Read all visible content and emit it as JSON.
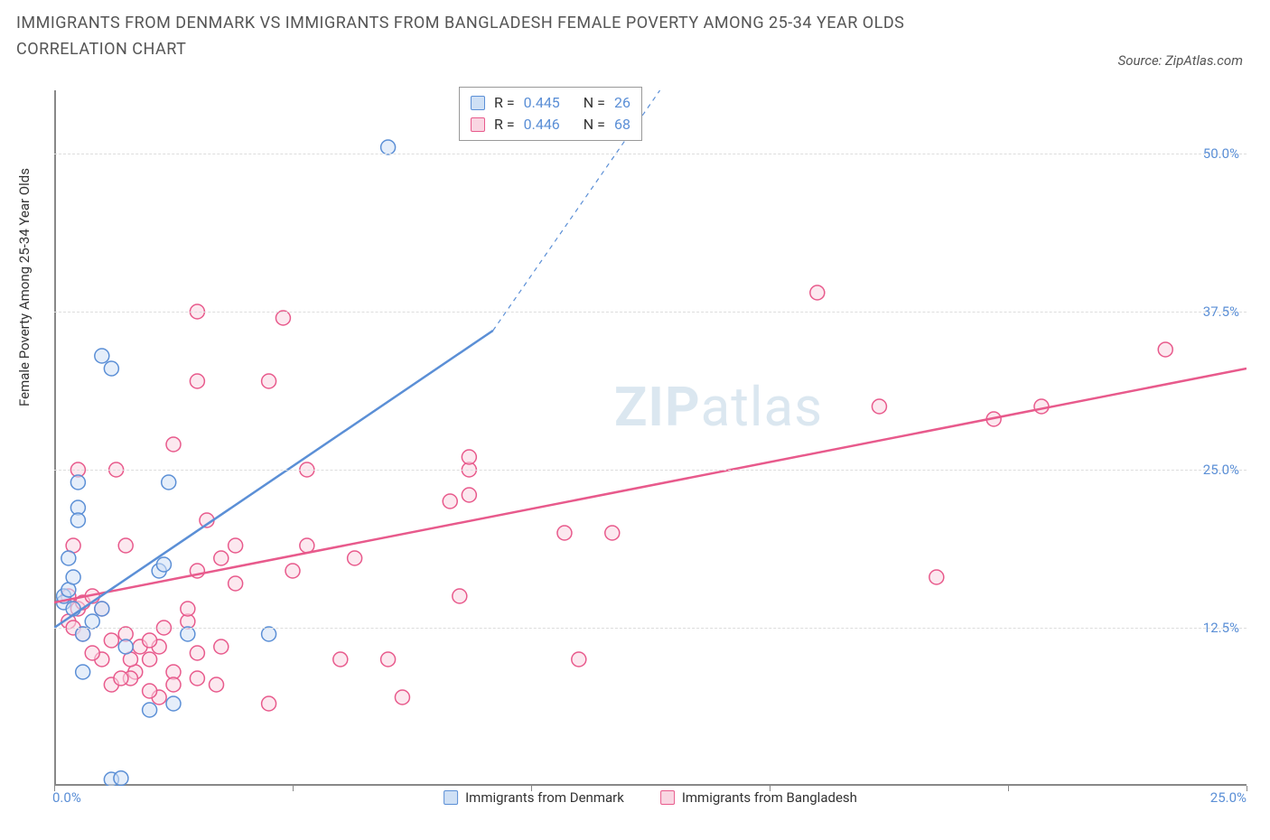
{
  "title": "IMMIGRANTS FROM DENMARK VS IMMIGRANTS FROM BANGLADESH FEMALE POVERTY AMONG 25-34 YEAR OLDS CORRELATION CHART",
  "source": "Source: ZipAtlas.com",
  "y_axis_label": "Female Poverty Among 25-34 Year Olds",
  "watermark_zip": "ZIP",
  "watermark_atlas": "atlas",
  "chart": {
    "type": "scatter",
    "xlim": [
      0,
      25
    ],
    "ylim": [
      0,
      55
    ],
    "x_ticks": [
      0,
      5,
      10,
      15,
      20,
      25
    ],
    "x_tick_labels": [
      "0.0%",
      "",
      "",
      "",
      "",
      "25.0%"
    ],
    "y_ticks": [
      12.5,
      25,
      37.5,
      50
    ],
    "y_tick_labels": [
      "12.5%",
      "25.0%",
      "37.5%",
      "50.0%"
    ],
    "background_color": "#ffffff",
    "grid_color": "#dddddd",
    "axis_color": "#888888",
    "marker_radius": 8,
    "marker_stroke_width": 1.5,
    "trend_line_width": 2.5,
    "series": [
      {
        "name": "Immigrants from Denmark",
        "fill_color": "#cfe0f5",
        "stroke_color": "#5b8fd6",
        "fill_opacity": 0.55,
        "R": "0.445",
        "N": "26",
        "trend": {
          "x1": 0,
          "y1": 12.5,
          "x2": 9.2,
          "y2": 36,
          "dash_x2": 12.7,
          "dash_y2": 55
        },
        "points": [
          [
            0.2,
            14.5
          ],
          [
            0.2,
            15
          ],
          [
            0.3,
            15.5
          ],
          [
            0.4,
            14
          ],
          [
            0.4,
            16.5
          ],
          [
            0.6,
            9
          ],
          [
            0.5,
            24
          ],
          [
            1.0,
            34
          ],
          [
            1.2,
            33
          ],
          [
            0.5,
            22
          ],
          [
            0.5,
            21
          ],
          [
            2.2,
            17
          ],
          [
            2.3,
            17.5
          ],
          [
            2.4,
            24
          ],
          [
            2.0,
            6
          ],
          [
            2.5,
            6.5
          ],
          [
            1.2,
            0.5
          ],
          [
            1.4,
            0.6
          ],
          [
            2.8,
            12
          ],
          [
            4.5,
            12
          ],
          [
            1.0,
            14
          ],
          [
            0.6,
            12
          ],
          [
            0.8,
            13
          ],
          [
            0.3,
            18
          ],
          [
            7.0,
            50.5
          ],
          [
            1.5,
            11
          ]
        ]
      },
      {
        "name": "Immigrants from Bangladesh",
        "fill_color": "#f9d6e2",
        "stroke_color": "#e85a8c",
        "fill_opacity": 0.55,
        "R": "0.446",
        "N": "68",
        "trend": {
          "x1": 0,
          "y1": 14.5,
          "x2": 25,
          "y2": 33
        },
        "points": [
          [
            0.3,
            15
          ],
          [
            0.5,
            14
          ],
          [
            0.4,
            19
          ],
          [
            0.6,
            14.5
          ],
          [
            0.8,
            15
          ],
          [
            1.0,
            14
          ],
          [
            0.5,
            25
          ],
          [
            1.3,
            25
          ],
          [
            1.5,
            19
          ],
          [
            1.7,
            9
          ],
          [
            1.6,
            8.5
          ],
          [
            2.0,
            10
          ],
          [
            2.2,
            11
          ],
          [
            2.2,
            7
          ],
          [
            2.5,
            27
          ],
          [
            2.5,
            9
          ],
          [
            2.8,
            13
          ],
          [
            2.8,
            14
          ],
          [
            3.0,
            17
          ],
          [
            3.0,
            32
          ],
          [
            3.0,
            37.5
          ],
          [
            3.2,
            21
          ],
          [
            3.4,
            8
          ],
          [
            3.5,
            11
          ],
          [
            3.5,
            18
          ],
          [
            3.8,
            16
          ],
          [
            3.8,
            19
          ],
          [
            4.5,
            6.5
          ],
          [
            4.5,
            32
          ],
          [
            4.8,
            37
          ],
          [
            5.0,
            17
          ],
          [
            5.3,
            19
          ],
          [
            5.3,
            25
          ],
          [
            6.0,
            10
          ],
          [
            6.3,
            18
          ],
          [
            7.0,
            10
          ],
          [
            7.3,
            7
          ],
          [
            8.3,
            22.5
          ],
          [
            8.5,
            15
          ],
          [
            8.7,
            23
          ],
          [
            8.7,
            25
          ],
          [
            8.7,
            26
          ],
          [
            10.7,
            20
          ],
          [
            11.0,
            10
          ],
          [
            11.7,
            20
          ],
          [
            16.0,
            39
          ],
          [
            17.3,
            30
          ],
          [
            18.5,
            16.5
          ],
          [
            19.7,
            29
          ],
          [
            20.7,
            30
          ],
          [
            23.3,
            34.5
          ],
          [
            1.0,
            10
          ],
          [
            1.2,
            11.5
          ],
          [
            1.5,
            12
          ],
          [
            1.6,
            10
          ],
          [
            1.8,
            11
          ],
          [
            2.0,
            11.5
          ],
          [
            2.3,
            12.5
          ],
          [
            3.0,
            10.5
          ],
          [
            0.3,
            13
          ],
          [
            0.4,
            12.5
          ],
          [
            0.6,
            12
          ],
          [
            1.2,
            8
          ],
          [
            1.4,
            8.5
          ],
          [
            2.0,
            7.5
          ],
          [
            2.5,
            8
          ],
          [
            3.0,
            8.5
          ],
          [
            0.8,
            10.5
          ]
        ]
      }
    ]
  },
  "legend_bottom": {
    "series1_label": "Immigrants from Denmark",
    "series2_label": "Immigrants from Bangladesh"
  },
  "stats_box": {
    "row1_r_label": "R =",
    "row1_r_val": "0.445",
    "row1_n_label": "N =",
    "row1_n_val": "26",
    "row2_r_label": "R =",
    "row2_r_val": "0.446",
    "row2_n_label": "N =",
    "row2_n_val": "68"
  }
}
